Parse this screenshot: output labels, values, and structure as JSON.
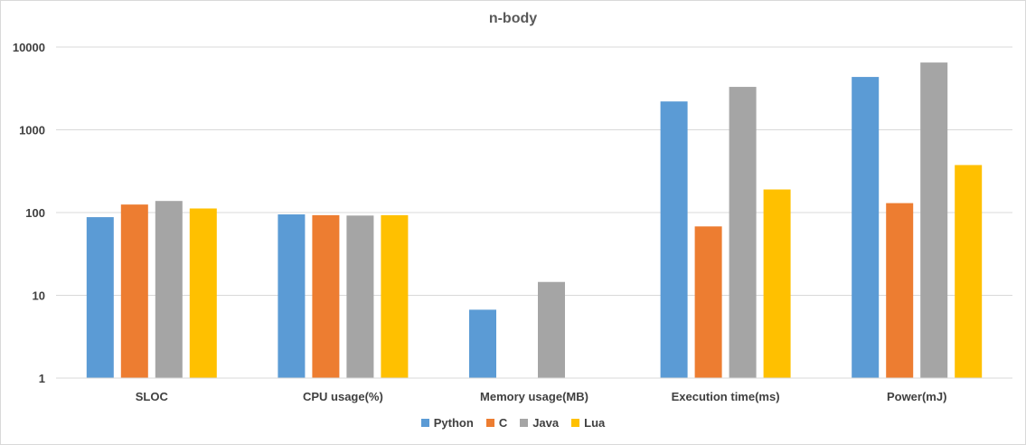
{
  "chart_data": {
    "type": "bar",
    "title": "n-body",
    "xlabel": "",
    "ylabel": "",
    "yscale": "log",
    "ylim": [
      1,
      10000
    ],
    "yticks": [
      "1",
      "10",
      "100",
      "1000",
      "10000"
    ],
    "grid": true,
    "legend_position": "bottom",
    "categories": [
      "SLOC",
      "CPU usage(%)",
      "Memory usage(MB)",
      "Execution time(ms)",
      "Power(mJ)"
    ],
    "series": [
      {
        "name": "Python",
        "color": "#5b9bd5",
        "values": [
          88,
          95,
          6.7,
          2200,
          4350
        ]
      },
      {
        "name": "C",
        "color": "#ed7d31",
        "values": [
          125,
          93,
          null,
          68,
          130
        ]
      },
      {
        "name": "Java",
        "color": "#a5a5a5",
        "values": [
          138,
          92,
          14.5,
          3300,
          6500
        ]
      },
      {
        "name": "Lua",
        "color": "#ffc000",
        "values": [
          112,
          93,
          null,
          190,
          375
        ]
      }
    ]
  }
}
